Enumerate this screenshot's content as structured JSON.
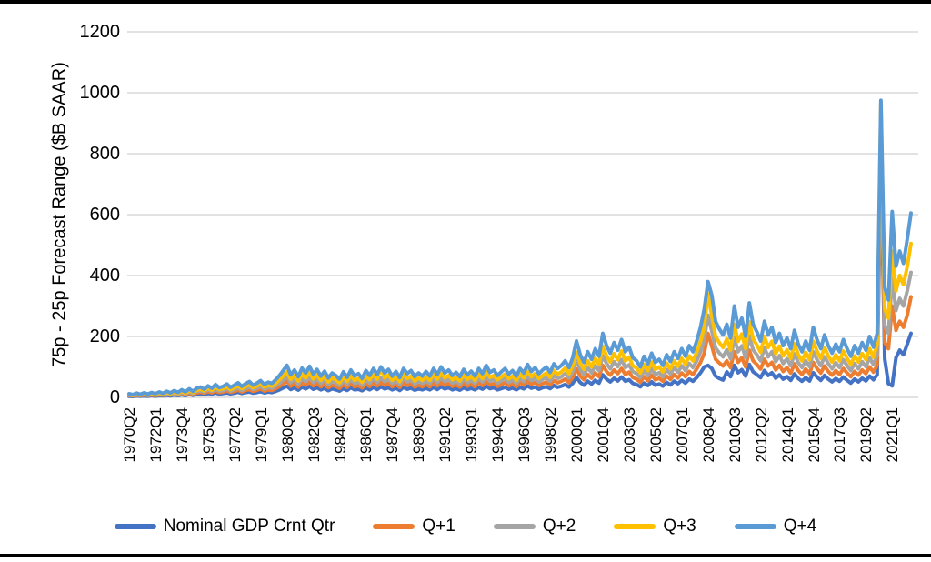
{
  "chart_data": {
    "type": "line",
    "title": "",
    "xlabel": "",
    "ylabel": "75p - 25p Forecast Range ($B SAAR)",
    "ylim": [
      0,
      1200
    ],
    "y_ticks": [
      0,
      200,
      400,
      600,
      800,
      1000,
      1200
    ],
    "grid": "horizontal",
    "gridline_color": "#d9d9d9",
    "legend_position": "bottom",
    "x_start": "1970Q2",
    "x_end": "2022Q2",
    "x_frequency": "quarterly",
    "x_tick_every_n_quarters": 7,
    "x_tick_labels": [
      "1970Q2",
      "1972Q1",
      "1973Q4",
      "1975Q3",
      "1977Q2",
      "1979Q1",
      "1980Q4",
      "1982Q3",
      "1984Q2",
      "1986Q1",
      "1987Q4",
      "1989Q3",
      "1991Q2",
      "1993Q1",
      "1994Q4",
      "1996Q3",
      "1998Q2",
      "2000Q1",
      "2001Q4",
      "2003Q3",
      "2005Q2",
      "2007Q1",
      "2008Q4",
      "2010Q3",
      "2012Q2",
      "2014Q1",
      "2015Q4",
      "2017Q3",
      "2019Q2",
      "2021Q1"
    ],
    "series": [
      {
        "name": "Nominal GDP Crnt Qtr",
        "color": "#4472C4",
        "values": [
          4,
          3,
          5,
          4,
          5,
          4,
          6,
          4,
          6,
          5,
          7,
          5,
          8,
          6,
          9,
          6,
          10,
          7,
          11,
          12,
          9,
          13,
          11,
          15,
          11,
          13,
          15,
          12,
          14,
          17,
          13,
          16,
          18,
          14,
          16,
          19,
          15,
          18,
          16,
          20,
          25,
          31,
          37,
          26,
          32,
          24,
          34,
          28,
          36,
          27,
          32,
          25,
          30,
          22,
          28,
          25,
          21,
          29,
          23,
          32,
          25,
          27,
          22,
          31,
          25,
          33,
          26,
          35,
          28,
          32,
          25,
          30,
          23,
          33,
          27,
          31,
          24,
          28,
          25,
          30,
          25,
          33,
          26,
          35,
          28,
          32,
          25,
          29,
          24,
          32,
          26,
          30,
          25,
          33,
          27,
          37,
          29,
          32,
          25,
          29,
          33,
          27,
          31,
          25,
          33,
          28,
          38,
          30,
          34,
          27,
          32,
          35,
          29,
          39,
          33,
          37,
          42,
          34,
          46,
          65,
          49,
          40,
          53,
          44,
          56,
          47,
          74,
          60,
          51,
          63,
          54,
          67,
          53,
          58,
          46,
          42,
          35,
          47,
          39,
          51,
          40,
          44,
          37,
          49,
          41,
          53,
          45,
          56,
          47,
          60,
          53,
          65,
          81,
          100,
          105,
          95,
          70,
          62,
          57,
          84,
          68,
          105,
          81,
          91,
          70,
          108,
          84,
          75,
          65,
          88,
          72,
          81,
          63,
          74,
          60,
          68,
          56,
          77,
          62,
          53,
          65,
          54,
          81,
          67,
          56,
          72,
          60,
          51,
          62,
          53,
          67,
          56,
          47,
          60,
          51,
          63,
          54,
          70,
          58,
          74,
          760,
          126,
          45,
          38,
          130,
          155,
          140,
          175,
          210
        ]
      },
      {
        "name": "Q+1",
        "color": "#ED7D31",
        "values": [
          6,
          5,
          7,
          5,
          8,
          6,
          8,
          6,
          9,
          7,
          10,
          8,
          11,
          8,
          13,
          9,
          14,
          10,
          15,
          17,
          14,
          19,
          15,
          21,
          16,
          18,
          22,
          17,
          20,
          24,
          18,
          23,
          26,
          20,
          24,
          28,
          21,
          25,
          23,
          29,
          36,
          44,
          53,
          37,
          45,
          34,
          48,
          40,
          51,
          38,
          46,
          35,
          43,
          32,
          40,
          36,
          30,
          42,
          33,
          45,
          35,
          39,
          31,
          44,
          36,
          48,
          38,
          50,
          40,
          46,
          35,
          43,
          33,
          48,
          39,
          44,
          34,
          40,
          35,
          43,
          35,
          48,
          38,
          50,
          40,
          45,
          36,
          41,
          34,
          46,
          37,
          43,
          35,
          48,
          39,
          53,
          41,
          45,
          36,
          42,
          48,
          38,
          44,
          35,
          48,
          40,
          54,
          43,
          49,
          39,
          45,
          50,
          41,
          55,
          48,
          53,
          60,
          49,
          65,
          93,
          70,
          58,
          75,
          63,
          80,
          68,
          105,
          85,
          73,
          90,
          78,
          95,
          75,
          83,
          65,
          60,
          50,
          68,
          55,
          73,
          58,
          63,
          53,
          70,
          59,
          75,
          64,
          80,
          68,
          85,
          75,
          93,
          115,
          145,
          210,
          168,
          125,
          113,
          103,
          120,
          98,
          150,
          115,
          130,
          100,
          155,
          120,
          108,
          93,
          125,
          103,
          115,
          90,
          105,
          85,
          98,
          80,
          110,
          88,
          75,
          93,
          78,
          115,
          95,
          80,
          103,
          85,
          73,
          88,
          75,
          95,
          80,
          68,
          85,
          73,
          90,
          78,
          100,
          83,
          105,
          820,
          180,
          160,
          300,
          220,
          250,
          230,
          270,
          330
        ]
      },
      {
        "name": "Q+2",
        "color": "#A5A5A5",
        "values": [
          8,
          6,
          9,
          7,
          10,
          7,
          10,
          8,
          12,
          8,
          13,
          10,
          14,
          10,
          16,
          12,
          18,
          13,
          20,
          22,
          18,
          25,
          20,
          27,
          21,
          23,
          29,
          21,
          26,
          31,
          23,
          29,
          34,
          26,
          31,
          36,
          27,
          33,
          30,
          38,
          47,
          57,
          68,
          48,
          59,
          44,
          62,
          52,
          66,
          49,
          60,
          46,
          56,
          42,
          52,
          47,
          39,
          55,
          43,
          59,
          46,
          51,
          40,
          57,
          47,
          62,
          49,
          65,
          52,
          60,
          46,
          55,
          42,
          62,
          51,
          57,
          44,
          52,
          46,
          55,
          46,
          62,
          49,
          65,
          52,
          59,
          47,
          53,
          44,
          60,
          48,
          56,
          46,
          62,
          51,
          68,
          53,
          59,
          47,
          55,
          62,
          49,
          57,
          46,
          62,
          52,
          70,
          55,
          64,
          51,
          59,
          65,
          53,
          72,
          62,
          68,
          78,
          64,
          85,
          120,
          91,
          75,
          98,
          81,
          104,
          88,
          137,
          111,
          94,
          117,
          101,
          124,
          98,
          107,
          85,
          78,
          65,
          88,
          72,
          94,
          75,
          81,
          68,
          91,
          77,
          98,
          83,
          104,
          88,
          111,
          98,
          120,
          150,
          189,
          270,
          218,
          163,
          146,
          133,
          156,
          127,
          195,
          150,
          169,
          130,
          202,
          156,
          140,
          120,
          163,
          133,
          150,
          117,
          137,
          111,
          127,
          104,
          143,
          114,
          98,
          120,
          101,
          150,
          124,
          104,
          133,
          111,
          94,
          114,
          98,
          124,
          104,
          88,
          111,
          94,
          117,
          101,
          130,
          107,
          140,
          890,
          235,
          210,
          390,
          285,
          325,
          300,
          350,
          410
        ]
      },
      {
        "name": "Q+3",
        "color": "#FFC000",
        "values": [
          10,
          7,
          11,
          8,
          12,
          9,
          13,
          10,
          14,
          10,
          16,
          12,
          18,
          13,
          20,
          14,
          22,
          16,
          24,
          27,
          22,
          30,
          24,
          34,
          26,
          29,
          35,
          26,
          32,
          38,
          29,
          36,
          42,
          32,
          38,
          44,
          34,
          40,
          37,
          46,
          58,
          70,
          84,
          59,
          72,
          54,
          77,
          64,
          82,
          61,
          74,
          56,
          69,
          51,
          64,
          58,
          48,
          67,
          53,
          72,
          56,
          62,
          50,
          70,
          58,
          76,
          60,
          95,
          64,
          74,
          56,
          68,
          52,
          76,
          62,
          70,
          54,
          64,
          56,
          68,
          56,
          76,
          60,
          80,
          64,
          72,
          58,
          66,
          54,
          74,
          59,
          69,
          56,
          76,
          62,
          84,
          66,
          72,
          58,
          67,
          76,
          61,
          70,
          56,
          76,
          64,
          86,
          68,
          78,
          62,
          72,
          80,
          66,
          88,
          76,
          84,
          96,
          78,
          104,
          148,
          112,
          92,
          120,
          100,
          128,
          108,
          168,
          136,
          116,
          144,
          124,
          152,
          120,
          132,
          104,
          96,
          80,
          108,
          88,
          116,
          92,
          100,
          84,
          112,
          94,
          120,
          102,
          128,
          108,
          136,
          120,
          148,
          184,
          232,
          340,
          268,
          200,
          180,
          164,
          192,
          156,
          240,
          184,
          208,
          160,
          248,
          192,
          172,
          148,
          200,
          164,
          184,
          144,
          168,
          136,
          156,
          128,
          176,
          140,
          120,
          148,
          124,
          184,
          152,
          128,
          164,
          136,
          116,
          140,
          120,
          152,
          128,
          108,
          136,
          116,
          144,
          124,
          160,
          132,
          175,
          960,
          290,
          260,
          480,
          350,
          400,
          370,
          430,
          505
        ]
      },
      {
        "name": "Q+4",
        "color": "#5B9BD5",
        "values": [
          12,
          9,
          14,
          10,
          15,
          11,
          16,
          12,
          18,
          13,
          20,
          15,
          22,
          16,
          25,
          18,
          28,
          20,
          30,
          34,
          27,
          38,
          30,
          42,
          32,
          36,
          44,
          33,
          40,
          48,
          36,
          45,
          52,
          40,
          47,
          55,
          42,
          50,
          46,
          58,
          72,
          88,
          105,
          74,
          90,
          68,
          96,
          80,
          102,
          76,
          92,
          70,
          86,
          64,
          80,
          72,
          60,
          84,
          66,
          90,
          70,
          78,
          62,
          88,
          72,
          95,
          75,
          100,
          80,
          92,
          70,
          85,
          65,
          95,
          78,
          88,
          68,
          80,
          70,
          85,
          70,
          95,
          75,
          100,
          80,
          90,
          72,
          82,
          68,
          92,
          74,
          86,
          70,
          95,
          78,
          105,
          82,
          90,
          72,
          84,
          95,
          76,
          88,
          70,
          95,
          80,
          108,
          85,
          98,
          78,
          90,
          100,
          82,
          110,
          95,
          105,
          120,
          98,
          130,
          185,
          140,
          115,
          150,
          125,
          160,
          135,
          210,
          170,
          145,
          180,
          155,
          190,
          150,
          165,
          130,
          120,
          100,
          135,
          110,
          145,
          115,
          125,
          105,
          140,
          118,
          150,
          128,
          160,
          135,
          170,
          150,
          185,
          230,
          290,
          380,
          335,
          250,
          225,
          205,
          240,
          195,
          300,
          230,
          260,
          200,
          310,
          240,
          215,
          185,
          250,
          205,
          230,
          180,
          210,
          170,
          195,
          160,
          220,
          175,
          150,
          185,
          155,
          230,
          190,
          160,
          205,
          170,
          145,
          175,
          150,
          190,
          160,
          135,
          170,
          145,
          180,
          155,
          200,
          165,
          210,
          975,
          360,
          320,
          610,
          430,
          480,
          440,
          520,
          605
        ]
      }
    ]
  }
}
